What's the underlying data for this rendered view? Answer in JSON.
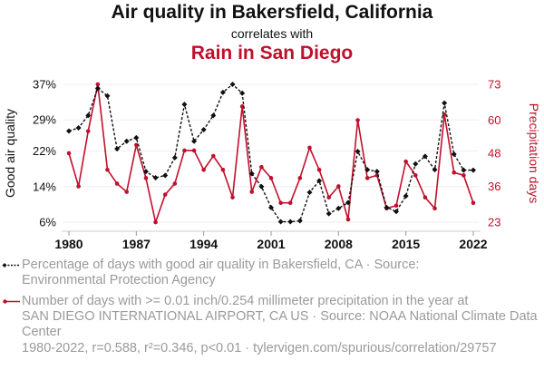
{
  "title": "Air quality in Bakersfield, California",
  "subtitle": "correlates with",
  "title2": "Rain in San Diego",
  "colors": {
    "series1": "#111111",
    "series2": "#c0102c",
    "grid": "#eeeeee",
    "legend_text": "#9a9a9a"
  },
  "chart_data": {
    "type": "line",
    "x": [
      1980,
      1981,
      1982,
      1983,
      1984,
      1985,
      1986,
      1987,
      1988,
      1989,
      1990,
      1991,
      1992,
      1993,
      1994,
      1995,
      1996,
      1997,
      1998,
      1999,
      2000,
      2001,
      2002,
      2003,
      2004,
      2005,
      2006,
      2007,
      2008,
      2009,
      2010,
      2011,
      2012,
      2013,
      2014,
      2015,
      2016,
      2017,
      2018,
      2019,
      2020,
      2021,
      2022
    ],
    "xticks": [
      "1980",
      "1987",
      "1994",
      "2001",
      "2008",
      "2015",
      "2022"
    ],
    "series": [
      {
        "name": "Good air quality (%)",
        "axis": "left",
        "style": "dashed-diamond",
        "values": [
          26.5,
          27.2,
          30.0,
          36.1,
          34.4,
          22.5,
          24.2,
          25.0,
          17.4,
          16.0,
          16.5,
          20.5,
          32.5,
          24.2,
          26.8,
          30.0,
          35.2,
          37.0,
          35.0,
          16.9,
          14.0,
          9.3,
          6.1,
          6.1,
          6.3,
          12.7,
          15.3,
          7.9,
          9.1,
          10.4,
          21.9,
          17.8,
          17.4,
          9.3,
          8.4,
          11.9,
          19.1,
          20.8,
          17.8,
          32.8,
          21.3,
          17.7,
          17.7
        ]
      },
      {
        "name": "Precipitation days",
        "axis": "right",
        "style": "solid-dot",
        "values": [
          48,
          36,
          56,
          73,
          42,
          37,
          34,
          51,
          39,
          23,
          33,
          37,
          49,
          49,
          42,
          47,
          42,
          32,
          65,
          34,
          43,
          39,
          30,
          30,
          39,
          50,
          42,
          32,
          36,
          24,
          60,
          39,
          40,
          28,
          29,
          45,
          40,
          32,
          28,
          62,
          41,
          40,
          30
        ]
      }
    ],
    "ylabel_left": "Good air quality",
    "ylabel_right": "Precipitation days",
    "yticks_left": [
      {
        "v": 6,
        "label": "6%"
      },
      {
        "v": 14,
        "label": "14%"
      },
      {
        "v": 22,
        "label": "22%"
      },
      {
        "v": 29,
        "label": "29%"
      },
      {
        "v": 37,
        "label": "37%"
      }
    ],
    "yticks_right": [
      {
        "v": 23,
        "label": "23"
      },
      {
        "v": 36,
        "label": "36"
      },
      {
        "v": 48,
        "label": "48"
      },
      {
        "v": 60,
        "label": "60"
      },
      {
        "v": 73,
        "label": "73"
      }
    ],
    "ylim_left": [
      6,
      37
    ],
    "ylim_right": [
      23,
      73
    ],
    "xlim": [
      1980,
      2022
    ],
    "grid": true
  },
  "legend": {
    "series1_lines": [
      "Percentage of days with good air quality in Bakersfield, CA · Source:",
      "Environmental Protection Agency"
    ],
    "series2_lines": [
      "Number of days with >= 0.01 inch/0.254 millimeter precipitation in the year at",
      "SAN DIEGO INTERNATIONAL AIRPORT, CA US · Source: NOAA National Climate Data",
      "Center"
    ]
  },
  "footer": "1980-2022, r=0.588, r²=0.346, p<0.01 · tylervigen.com/spurious/correlation/29757"
}
